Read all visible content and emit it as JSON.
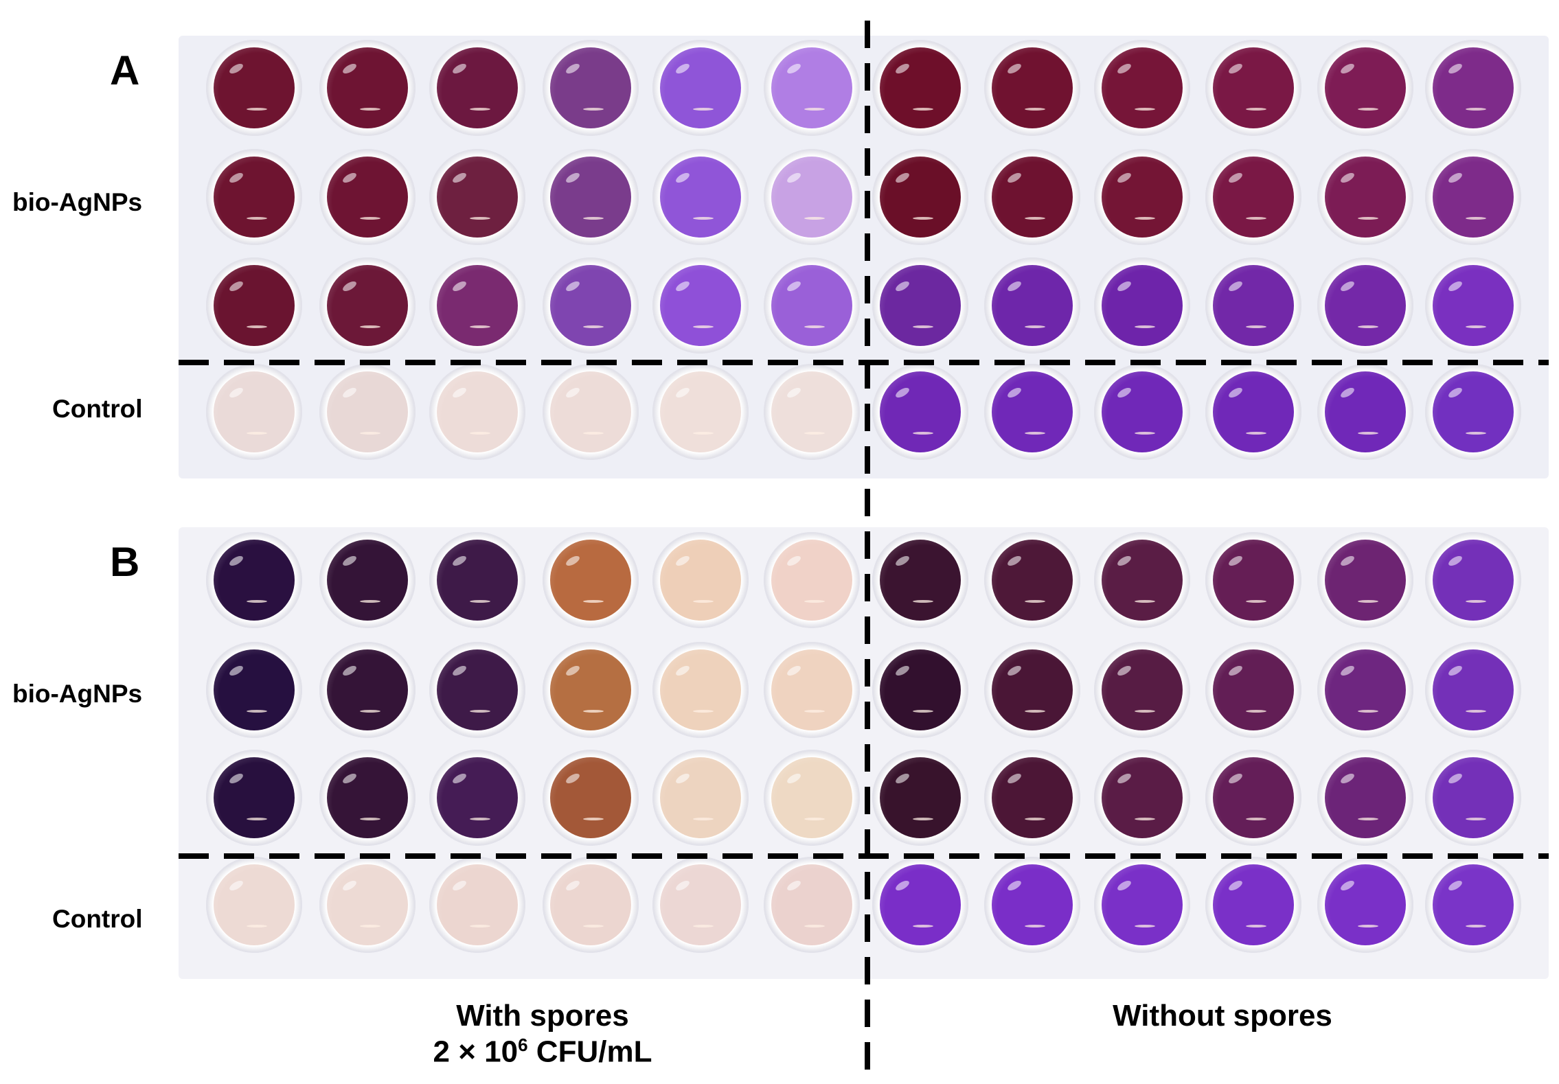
{
  "panels": [
    {
      "letter": "A",
      "row_labels": [
        "bio-AgNPs",
        "Control"
      ],
      "rows": [
        [
          "#6e1430",
          "#6e1433",
          "#6c1840",
          "#7a3c8a",
          "#8f55d8",
          "#b07ee4",
          "#6e0f2a",
          "#701230",
          "#761538",
          "#7a1845",
          "#7e1c55",
          "#7e2b8a"
        ],
        [
          "#6e1430",
          "#6e1433",
          "#6e2040",
          "#7a3c8c",
          "#9055d8",
          "#c8a2e4",
          "#6a0f28",
          "#6e1230",
          "#741535",
          "#7a1845",
          "#7c1c55",
          "#7e2b8a"
        ],
        [
          "#6a1430",
          "#6c1838",
          "#7a2a70",
          "#7f45b0",
          "#8f50d8",
          "#9a60d8",
          "#6c28a0",
          "#6e26aa",
          "#6e24aa",
          "#7228a8",
          "#7428a8",
          "#7a30c0"
        ],
        [
          "#eadad8",
          "#e8d8d6",
          "#eddcd8",
          "#eddcd8",
          "#efdfda",
          "#eedfdb",
          "#7028b6",
          "#7028b8",
          "#7028b8",
          "#7028b8",
          "#7028b8",
          "#7230c0"
        ]
      ]
    },
    {
      "letter": "B",
      "row_labels": [
        "bio-AgNPs",
        "Control"
      ],
      "rows": [
        [
          "#2a1040",
          "#341437",
          "#3e1a48",
          "#b86a40",
          "#eecfb8",
          "#f0d2c8",
          "#3b1430",
          "#4e1838",
          "#5a1d45",
          "#651e55",
          "#6d2472",
          "#7430b8"
        ],
        [
          "#261040",
          "#341437",
          "#3e1a48",
          "#b56f42",
          "#eed2bc",
          "#efd3c0",
          "#32102e",
          "#4a1636",
          "#571c44",
          "#621e55",
          "#6e2680",
          "#7430b8"
        ],
        [
          "#28103e",
          "#351437",
          "#451c55",
          "#a35838",
          "#edd4c0",
          "#eed9c4",
          "#38132c",
          "#4c1636",
          "#5a1c46",
          "#641e58",
          "#6c2478",
          "#7430b8"
        ],
        [
          "#eddad4",
          "#eddad4",
          "#ecd6d0",
          "#ecd6d0",
          "#ecd7d4",
          "#ebd2ce",
          "#7a2ec8",
          "#7a2ec8",
          "#7a30c8",
          "#7a30c8",
          "#7a30c8",
          "#7a34c8"
        ]
      ]
    }
  ],
  "column_labels": {
    "left_line1": "With spores",
    "left_line2_prefix": "2 × 10",
    "left_line2_sup": "6",
    "left_line2_suffix": " CFU/mL",
    "right": "Without spores"
  }
}
